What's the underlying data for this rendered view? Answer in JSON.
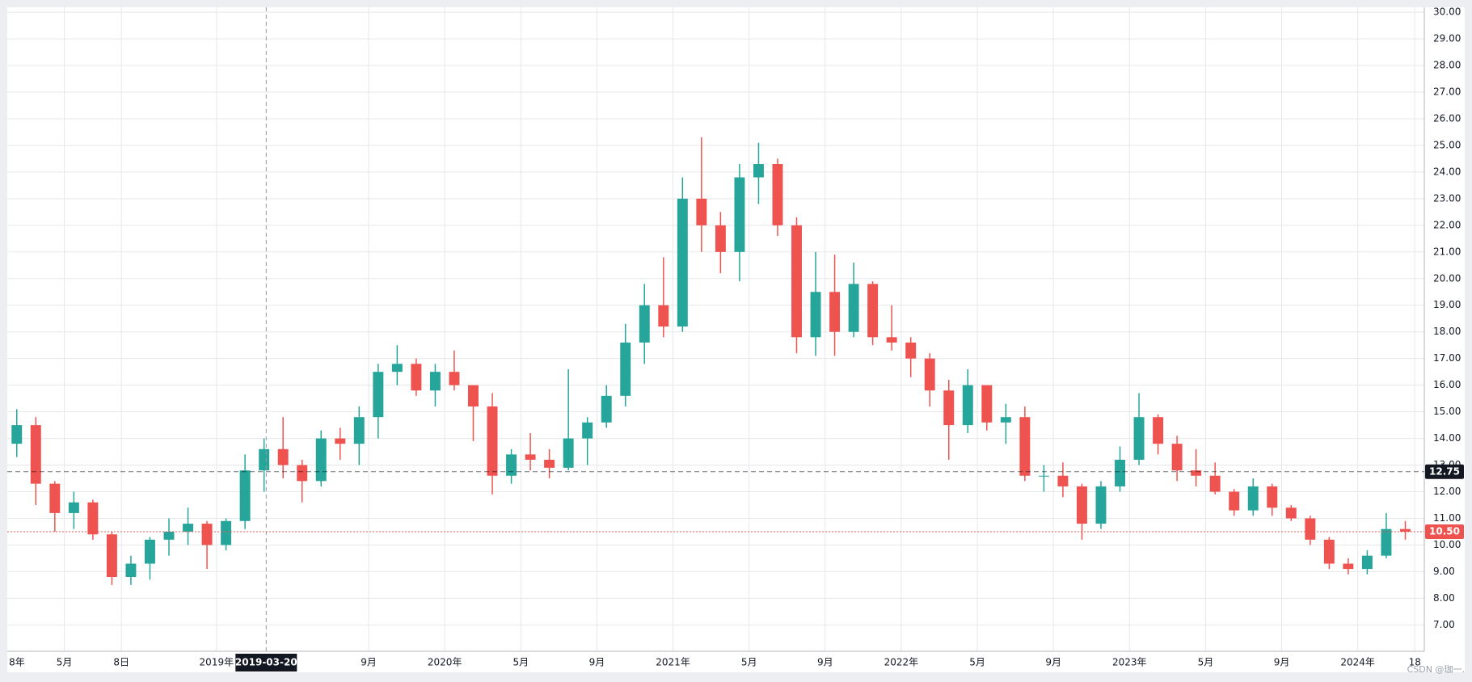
{
  "chart_data": {
    "type": "candlestick",
    "x": [
      "2018-02",
      "2018-03",
      "2018-04",
      "2018-05",
      "2018-06",
      "2018-07",
      "2018-08",
      "2018-09",
      "2018-10",
      "2018-11",
      "2018-12",
      "2019-01",
      "2019-02",
      "2019-03",
      "2019-04",
      "2019-05",
      "2019-06",
      "2019-07",
      "2019-08",
      "2019-09",
      "2019-10",
      "2019-11",
      "2019-12",
      "2020-01",
      "2020-02",
      "2020-03",
      "2020-04",
      "2020-05",
      "2020-06",
      "2020-07",
      "2020-08",
      "2020-09",
      "2020-10",
      "2020-11",
      "2020-12",
      "2021-01",
      "2021-02",
      "2021-03",
      "2021-04",
      "2021-05",
      "2021-06",
      "2021-07",
      "2021-08",
      "2021-09",
      "2021-10",
      "2021-11",
      "2021-12",
      "2022-01",
      "2022-02",
      "2022-03",
      "2022-04",
      "2022-05",
      "2022-06",
      "2022-07",
      "2022-08",
      "2022-09",
      "2022-10",
      "2022-11",
      "2022-12",
      "2023-01",
      "2023-02",
      "2023-03",
      "2023-04",
      "2023-05",
      "2023-06",
      "2023-07",
      "2023-08",
      "2023-09",
      "2023-10",
      "2023-11",
      "2023-12",
      "2024-01",
      "2024-02",
      "2024-03"
    ],
    "open": [
      13.8,
      14.5,
      12.3,
      11.2,
      11.6,
      10.4,
      8.8,
      9.3,
      10.2,
      10.5,
      10.8,
      10.0,
      10.9,
      12.8,
      13.6,
      13.0,
      12.4,
      14.0,
      13.8,
      14.8,
      16.5,
      16.8,
      15.8,
      16.5,
      16.0,
      15.2,
      12.6,
      13.4,
      13.2,
      12.9,
      14.0,
      14.6,
      15.6,
      17.6,
      19.0,
      18.2,
      23.0,
      22.0,
      21.0,
      23.8,
      24.3,
      22.0,
      17.8,
      19.5,
      18.0,
      19.8,
      17.8,
      17.6,
      17.0,
      15.8,
      14.5,
      16.0,
      14.6,
      14.8,
      12.6,
      12.6,
      12.2,
      10.8,
      12.2,
      13.2,
      14.8,
      13.8,
      12.8,
      12.6,
      12.0,
      11.3,
      12.2,
      11.4,
      11.0,
      10.2,
      9.3,
      9.1,
      9.6,
      10.6
    ],
    "high": [
      15.1,
      14.8,
      12.4,
      12.0,
      11.7,
      10.5,
      9.6,
      10.3,
      11.0,
      11.4,
      10.9,
      11.0,
      13.4,
      14.0,
      14.8,
      13.2,
      14.3,
      14.4,
      15.2,
      16.8,
      17.5,
      17.0,
      16.8,
      17.3,
      16.0,
      15.7,
      13.6,
      14.2,
      13.6,
      16.6,
      14.8,
      16.0,
      18.3,
      19.8,
      20.8,
      23.8,
      25.3,
      22.5,
      24.3,
      25.1,
      24.5,
      22.3,
      21.0,
      20.9,
      20.6,
      19.9,
      19.0,
      17.8,
      17.2,
      16.2,
      16.6,
      16.0,
      15.3,
      15.2,
      13.0,
      13.1,
      12.3,
      12.4,
      13.7,
      15.7,
      14.9,
      14.1,
      13.6,
      13.1,
      12.1,
      12.5,
      12.3,
      11.5,
      11.1,
      10.3,
      9.5,
      9.8,
      11.2,
      10.9
    ],
    "low": [
      13.3,
      11.5,
      10.5,
      10.6,
      10.2,
      8.5,
      8.5,
      8.7,
      9.6,
      10.0,
      9.1,
      9.8,
      10.6,
      12.0,
      12.5,
      11.6,
      12.2,
      13.2,
      13.0,
      14.0,
      16.0,
      15.6,
      15.2,
      15.8,
      13.9,
      11.9,
      12.3,
      12.8,
      12.5,
      12.8,
      13.0,
      14.4,
      15.2,
      16.8,
      17.8,
      18.0,
      21.0,
      20.2,
      19.9,
      22.8,
      21.6,
      17.2,
      17.1,
      17.1,
      17.8,
      17.5,
      17.3,
      16.3,
      15.2,
      13.2,
      14.2,
      14.3,
      13.8,
      12.4,
      12.0,
      11.8,
      10.2,
      10.6,
      12.0,
      13.0,
      13.4,
      12.4,
      12.2,
      11.9,
      11.1,
      11.1,
      11.1,
      10.9,
      10.0,
      9.1,
      8.9,
      8.9,
      9.5,
      10.2
    ],
    "close": [
      14.5,
      12.3,
      11.2,
      11.6,
      10.4,
      8.8,
      9.3,
      10.2,
      10.5,
      10.8,
      10.0,
      10.9,
      12.8,
      13.6,
      13.0,
      12.4,
      14.0,
      13.8,
      14.8,
      16.5,
      16.8,
      15.8,
      16.5,
      16.0,
      15.2,
      12.6,
      13.4,
      13.2,
      12.9,
      14.0,
      14.6,
      15.6,
      17.6,
      19.0,
      18.2,
      23.0,
      22.0,
      21.0,
      23.8,
      24.3,
      22.0,
      17.8,
      19.5,
      18.0,
      19.8,
      17.8,
      17.6,
      17.0,
      15.8,
      14.5,
      16.0,
      14.6,
      14.8,
      12.6,
      12.6,
      12.2,
      10.8,
      12.2,
      13.2,
      14.8,
      13.8,
      12.8,
      12.6,
      12.0,
      11.3,
      12.2,
      11.4,
      11.0,
      10.2,
      9.3,
      9.1,
      9.6,
      10.6,
      10.5
    ],
    "up_color": "#26a69a",
    "down_color": "#ef5350",
    "xlim": [
      "2018-02-01",
      "2024-04-16"
    ],
    "xticks": [
      {
        "value": "2018-01",
        "label": "8年"
      },
      {
        "value": "2018-05",
        "label": "5月"
      },
      {
        "value": "2018-08",
        "label": "8日"
      },
      {
        "value": "2019-01",
        "label": "2019年"
      },
      {
        "value": "2019-09",
        "label": "9月"
      },
      {
        "value": "2020-01",
        "label": "2020年"
      },
      {
        "value": "2020-05",
        "label": "5月"
      },
      {
        "value": "2020-09",
        "label": "9月"
      },
      {
        "value": "2021-01",
        "label": "2021年"
      },
      {
        "value": "2021-05",
        "label": "5月"
      },
      {
        "value": "2021-09",
        "label": "9月"
      },
      {
        "value": "2022-01",
        "label": "2022年"
      },
      {
        "value": "2022-05",
        "label": "5月"
      },
      {
        "value": "2022-09",
        "label": "9月"
      },
      {
        "value": "2023-01",
        "label": "2023年"
      },
      {
        "value": "2023-05",
        "label": "5月"
      },
      {
        "value": "2023-09",
        "label": "9月"
      },
      {
        "value": "2024-01",
        "label": "2024年"
      },
      {
        "value": "2024-04",
        "label": "18"
      }
    ],
    "ylim": [
      6.01,
      30.185
    ],
    "yticks": [
      {
        "value": 7,
        "label": "7.00"
      },
      {
        "value": 8,
        "label": "8.00"
      },
      {
        "value": 9,
        "label": "9.00"
      },
      {
        "value": 10,
        "label": "10.00"
      },
      {
        "value": 11,
        "label": "11.00"
      },
      {
        "value": 12,
        "label": "12.00"
      },
      {
        "value": 13,
        "label": "13.00"
      },
      {
        "value": 14,
        "label": "14.00"
      },
      {
        "value": 15,
        "label": "15.00"
      },
      {
        "value": 16,
        "label": "16.00"
      },
      {
        "value": 17,
        "label": "17.00"
      },
      {
        "value": 18,
        "label": "18.00"
      },
      {
        "value": 19,
        "label": "19.00"
      },
      {
        "value": 20,
        "label": "20.00"
      },
      {
        "value": 21,
        "label": "21.00"
      },
      {
        "value": 22,
        "label": "22.00"
      },
      {
        "value": 23,
        "label": "23.00"
      },
      {
        "value": 24,
        "label": "24.00"
      },
      {
        "value": 25,
        "label": "25.00"
      },
      {
        "value": 26,
        "label": "26.00"
      },
      {
        "value": 27,
        "label": "27.00"
      },
      {
        "value": 28,
        "label": "28.00"
      },
      {
        "value": 29,
        "label": "29.00"
      },
      {
        "value": 30,
        "label": "30.00"
      }
    ],
    "grid": true,
    "price_lines": [
      {
        "value": 12.75,
        "label": "12.75",
        "color": "#131722",
        "style": "dashed"
      },
      {
        "value": 10.5,
        "label": "10.50",
        "color": "#ef5350",
        "style": "dotted"
      }
    ],
    "crosshair_date": "2019-03-20",
    "watermark": "CSDN @珈一."
  }
}
